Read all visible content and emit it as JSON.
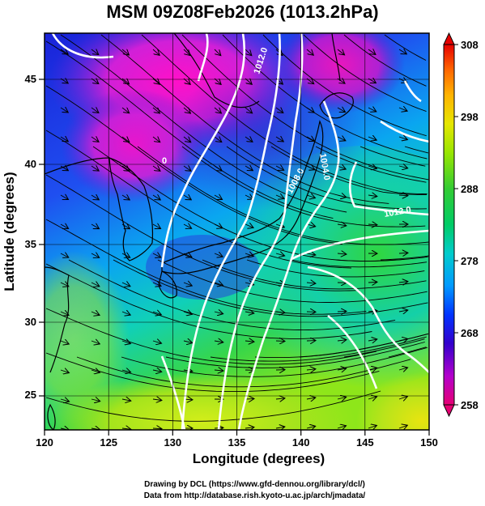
{
  "title": "MSM 09Z08Feb2026 (1013.2hPa)",
  "xlabel": "Longitude (degrees)",
  "ylabel": "Latitude  (degrees)",
  "credits": {
    "line1": "Drawing by DCL (https://www.gfd-dennou.org/library/dcl/)",
    "line2": "Data from http://database.rish.kyoto-u.ac.jp/arch/jmadata/"
  },
  "chart_data": {
    "type": "heatmap",
    "x_range": [
      120,
      150
    ],
    "y_range": [
      22.4,
      47.6
    ],
    "x_ticks": [
      "120",
      "125",
      "130",
      "135",
      "140",
      "145",
      "150"
    ],
    "y_ticks": [
      "25",
      "30",
      "35",
      "40",
      "45"
    ],
    "colorbar": {
      "range": [
        258,
        308
      ],
      "tick_labels": [
        "308",
        "298",
        "288",
        "278",
        "268",
        "258"
      ],
      "colors": [
        "#e60073",
        "#b300cc",
        "#3300cc",
        "#0033ff",
        "#0099ff",
        "#00cccc",
        "#00cc66",
        "#33cc33",
        "#99e600",
        "#e6e600",
        "#ffb300",
        "#ff6600",
        "#e60000"
      ]
    },
    "contour_labels": [
      "1012.0",
      "1004.0",
      "1008.0",
      "1012.0",
      "0"
    ],
    "grid": true
  }
}
